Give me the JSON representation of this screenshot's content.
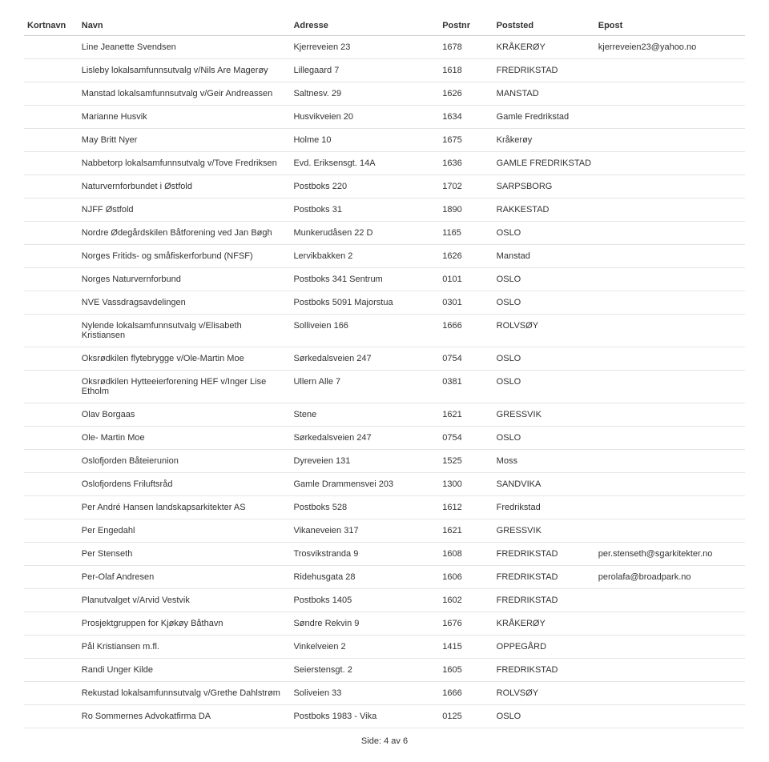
{
  "headers": {
    "kortnavn": "Kortnavn",
    "navn": "Navn",
    "adresse": "Adresse",
    "postnr": "Postnr",
    "poststed": "Poststed",
    "epost": "Epost"
  },
  "rows": [
    {
      "navn": "Line Jeanette Svendsen",
      "adresse": "Kjerreveien 23",
      "postnr": "1678",
      "poststed": "KRÅKERØY",
      "epost": "kjerreveien23@yahoo.no"
    },
    {
      "navn": "Lisleby lokalsamfunnsutvalg v/Nils Are Magerøy",
      "adresse": "Lillegaard 7",
      "postnr": "1618",
      "poststed": "FREDRIKSTAD",
      "epost": ""
    },
    {
      "navn": "Manstad lokalsamfunnsutvalg v/Geir Andreassen",
      "adresse": "Saltnesv. 29",
      "postnr": "1626",
      "poststed": "MANSTAD",
      "epost": ""
    },
    {
      "navn": "Marianne Husvik",
      "adresse": "Husvikveien 20",
      "postnr": "1634",
      "poststed": "Gamle Fredrikstad",
      "epost": ""
    },
    {
      "navn": "May Britt Nyer",
      "adresse": "Holme 10",
      "postnr": "1675",
      "poststed": "Kråkerøy",
      "epost": ""
    },
    {
      "navn": "Nabbetorp lokalsamfunnsutvalg v/Tove Fredriksen",
      "adresse": "Evd. Eriksensgt. 14A",
      "postnr": "1636",
      "poststed": "GAMLE FREDRIKSTAD",
      "epost": ""
    },
    {
      "navn": "Naturvernforbundet i Østfold",
      "adresse": "Postboks 220",
      "postnr": "1702",
      "poststed": "SARPSBORG",
      "epost": ""
    },
    {
      "navn": "NJFF Østfold",
      "adresse": "Postboks 31",
      "postnr": "1890",
      "poststed": "RAKKESTAD",
      "epost": ""
    },
    {
      "navn": "Nordre Ødegårdskilen Båtforening ved Jan Bøgh",
      "adresse": "Munkerudåsen 22 D",
      "postnr": "1165",
      "poststed": "OSLO",
      "epost": ""
    },
    {
      "navn": "Norges Fritids- og småfiskerforbund (NFSF)",
      "adresse": "Lervikbakken 2",
      "postnr": "1626",
      "poststed": "Manstad",
      "epost": ""
    },
    {
      "navn": "Norges Naturvernforbund",
      "adresse": "Postboks 341 Sentrum",
      "postnr": "0101",
      "poststed": "OSLO",
      "epost": ""
    },
    {
      "navn": "NVE Vassdragsavdelingen",
      "adresse": "Postboks 5091 Majorstua",
      "postnr": "0301",
      "poststed": "OSLO",
      "epost": ""
    },
    {
      "navn": "Nylende lokalsamfunnsutvalg v/Elisabeth Kristiansen",
      "adresse": "Solliveien 166",
      "postnr": "1666",
      "poststed": "ROLVSØY",
      "epost": ""
    },
    {
      "navn": "Oksrødkilen flytebrygge v/Ole-Martin Moe",
      "adresse": "Sørkedalsveien 247",
      "postnr": "0754",
      "poststed": "OSLO",
      "epost": ""
    },
    {
      "navn": "Oksrødkilen Hytteeierforening HEF v/Inger Lise Etholm",
      "adresse": "Ullern Alle 7",
      "postnr": "0381",
      "poststed": "OSLO",
      "epost": ""
    },
    {
      "navn": "Olav Borgaas",
      "adresse": "Stene",
      "postnr": "1621",
      "poststed": "GRESSVIK",
      "epost": ""
    },
    {
      "navn": "Ole- Martin Moe",
      "adresse": "Sørkedalsveien 247",
      "postnr": "0754",
      "poststed": "OSLO",
      "epost": ""
    },
    {
      "navn": "Oslofjorden Båteierunion",
      "adresse": "Dyreveien 131",
      "postnr": "1525",
      "poststed": "Moss",
      "epost": ""
    },
    {
      "navn": "Oslofjordens Friluftsråd",
      "adresse": "Gamle Drammensvei 203",
      "postnr": "1300",
      "poststed": "SANDVIKA",
      "epost": ""
    },
    {
      "navn": "Per André Hansen landskapsarkitekter AS",
      "adresse": "Postboks 528",
      "postnr": "1612",
      "poststed": "Fredrikstad",
      "epost": ""
    },
    {
      "navn": "Per Engedahl",
      "adresse": "Vikaneveien 317",
      "postnr": "1621",
      "poststed": "GRESSVIK",
      "epost": ""
    },
    {
      "navn": "Per Stenseth",
      "adresse": "Trosvikstranda 9",
      "postnr": "1608",
      "poststed": "FREDRIKSTAD",
      "epost": "per.stenseth@sgarkitekter.no"
    },
    {
      "navn": "Per-Olaf Andresen",
      "adresse": "Ridehusgata 28",
      "postnr": "1606",
      "poststed": "FREDRIKSTAD",
      "epost": "perolafa@broadpark.no"
    },
    {
      "navn": "Planutvalget v/Arvid Vestvik",
      "adresse": "Postboks 1405",
      "postnr": "1602",
      "poststed": "FREDRIKSTAD",
      "epost": ""
    },
    {
      "navn": "Prosjektgruppen for Kjøkøy Båthavn",
      "adresse": "Søndre Rekvin 9",
      "postnr": "1676",
      "poststed": "KRÅKERØY",
      "epost": ""
    },
    {
      "navn": "Pål Kristiansen m.fl.",
      "adresse": "Vinkelveien 2",
      "postnr": "1415",
      "poststed": "OPPEGÅRD",
      "epost": ""
    },
    {
      "navn": "Randi Unger Kilde",
      "adresse": "Seierstensgt. 2",
      "postnr": "1605",
      "poststed": "FREDRIKSTAD",
      "epost": ""
    },
    {
      "navn": "Rekustad lokalsamfunnsutvalg v/Grethe Dahlstrøm",
      "adresse": "Soliveien 33",
      "postnr": "1666",
      "poststed": "ROLVSØY",
      "epost": ""
    },
    {
      "navn": "Ro Sommernes Advokatfirma DA",
      "adresse": "Postboks 1983 - Vika",
      "postnr": "0125",
      "poststed": "OSLO",
      "epost": ""
    }
  ],
  "footer": {
    "side_label": "Side:",
    "page": "4",
    "av_label": "av",
    "total": "6"
  }
}
